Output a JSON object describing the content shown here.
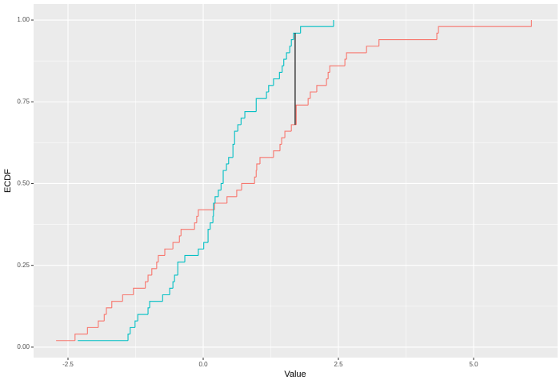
{
  "chart_data": {
    "type": "ecdf",
    "x_label": "Value",
    "y_label": "ECDF",
    "xlim": [
      -3.136,
      6.553
    ],
    "ylim": [
      -0.032,
      1.049
    ],
    "xticks": [
      {
        "value": -2.5,
        "label": "-2.5"
      },
      {
        "value": 0,
        "label": "0.0"
      },
      2.5,
      {
        "value": 5,
        "label": "5.0"
      }
    ],
    "yticks": [
      {
        "value": 0,
        "label": "0.00"
      },
      {
        "value": 0.25,
        "label": "0.25"
      },
      {
        "value": 0.5,
        "label": "0.50"
      },
      {
        "value": 0.75,
        "label": "0.75"
      },
      {
        "value": 1,
        "label": "1.00"
      }
    ],
    "grid": true,
    "series": [
      {
        "color": "#f8766d",
        "x": [
          -2.72,
          -2.37,
          -2.14,
          -1.94,
          -1.83,
          -1.79,
          -1.69,
          -1.49,
          -1.29,
          -1.07,
          -1.02,
          -0.95,
          -0.86,
          -0.83,
          -0.71,
          -0.56,
          -0.44,
          -0.41,
          -0.16,
          -0.12,
          -0.09,
          0.21,
          0.44,
          0.62,
          0.71,
          0.95,
          0.98,
          0.99,
          1.05,
          1.3,
          1.42,
          1.45,
          1.51,
          1.63,
          1.72,
          1.94,
          1.98,
          2.1,
          2.28,
          2.31,
          2.34,
          2.62,
          2.65,
          3.02,
          3.25,
          4.32,
          4.35,
          6.07
        ],
        "values": [
          0.02,
          0.04,
          0.06,
          0.08,
          0.1,
          0.12,
          0.14,
          0.16,
          0.18,
          0.2,
          0.22,
          0.24,
          0.26,
          0.28,
          0.3,
          0.32,
          0.34,
          0.36,
          0.38,
          0.4,
          0.42,
          0.44,
          0.46,
          0.48,
          0.5,
          0.52,
          0.54,
          0.56,
          0.58,
          0.6,
          0.62,
          0.64,
          0.66,
          0.68,
          0.74,
          0.76,
          0.78,
          0.8,
          0.82,
          0.84,
          0.86,
          0.88,
          0.9,
          0.92,
          0.94,
          0.96,
          0.98,
          1.0
        ]
      },
      {
        "color": "#00bfc4",
        "x": [
          -2.32,
          -1.39,
          -1.35,
          -1.26,
          -1.21,
          -1.02,
          -0.99,
          -0.75,
          -0.62,
          -0.56,
          -0.53,
          -0.47,
          -0.34,
          -0.09,
          0.01,
          0.09,
          0.13,
          0.18,
          0.19,
          0.22,
          0.28,
          0.33,
          0.37,
          0.43,
          0.47,
          0.55,
          0.58,
          0.64,
          0.7,
          0.77,
          0.98,
          1.17,
          1.21,
          1.3,
          1.41,
          1.46,
          1.49,
          1.54,
          1.6,
          1.63,
          1.67,
          1.8,
          2.41
        ],
        "values": [
          0.02,
          0.04,
          0.06,
          0.08,
          0.1,
          0.12,
          0.14,
          0.16,
          0.18,
          0.2,
          0.22,
          0.26,
          0.28,
          0.3,
          0.32,
          0.36,
          0.38,
          0.4,
          0.44,
          0.46,
          0.48,
          0.5,
          0.54,
          0.56,
          0.58,
          0.62,
          0.66,
          0.68,
          0.7,
          0.72,
          0.76,
          0.78,
          0.8,
          0.82,
          0.84,
          0.86,
          0.88,
          0.9,
          0.92,
          0.94,
          0.96,
          0.98,
          1.0
        ]
      }
    ],
    "ks_segment": {
      "x": 1.7,
      "y_from": 0.68,
      "y_to": 0.96,
      "color": "#000000"
    }
  }
}
